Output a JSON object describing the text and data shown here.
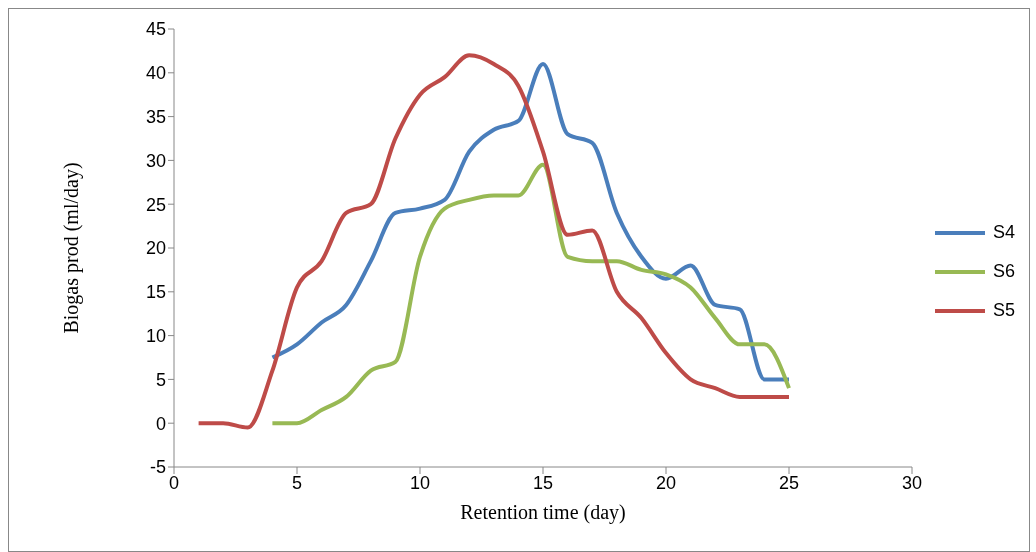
{
  "chart_data": {
    "type": "line",
    "xlabel": "Retention time (day)",
    "ylabel": "Biogas prod (ml/day)",
    "x": [
      1,
      2,
      3,
      4,
      5,
      6,
      7,
      8,
      9,
      10,
      11,
      12,
      13,
      14,
      15,
      16,
      17,
      18,
      19,
      20,
      21,
      22,
      23,
      24,
      25
    ],
    "series": [
      {
        "name": "S4",
        "color": "#4a7ebb",
        "values": [
          null,
          null,
          null,
          7.5,
          9,
          11.5,
          13.5,
          18.5,
          24,
          24.5,
          25.5,
          31,
          33.5,
          34.5,
          41,
          33,
          32,
          24,
          19,
          16.5,
          18,
          13.5,
          13,
          5,
          5
        ]
      },
      {
        "name": "S6",
        "color": "#98b954",
        "values": [
          null,
          null,
          null,
          0,
          0,
          1.5,
          3,
          6,
          7,
          19,
          24.5,
          25.5,
          26,
          26,
          29.5,
          19,
          18.5,
          18.5,
          17.5,
          17,
          15.5,
          12,
          9,
          9,
          4
        ]
      },
      {
        "name": "S5",
        "color": "#be4b48",
        "values": [
          0,
          0,
          -0.5,
          6,
          15.5,
          18.5,
          24,
          25,
          32.5,
          37.5,
          39.5,
          42,
          41,
          38.5,
          31,
          21.5,
          22,
          15,
          12,
          8,
          5,
          4,
          3,
          3,
          3
        ]
      }
    ],
    "xlim": [
      0,
      30
    ],
    "xticks": [
      0,
      5,
      10,
      15,
      20,
      25,
      30
    ],
    "ylim": [
      -5,
      45
    ],
    "yticks": [
      -5,
      0,
      5,
      10,
      15,
      20,
      25,
      30,
      35,
      40,
      45
    ],
    "grid": false,
    "legend": "right",
    "marker": "none",
    "line_style": "solid"
  }
}
